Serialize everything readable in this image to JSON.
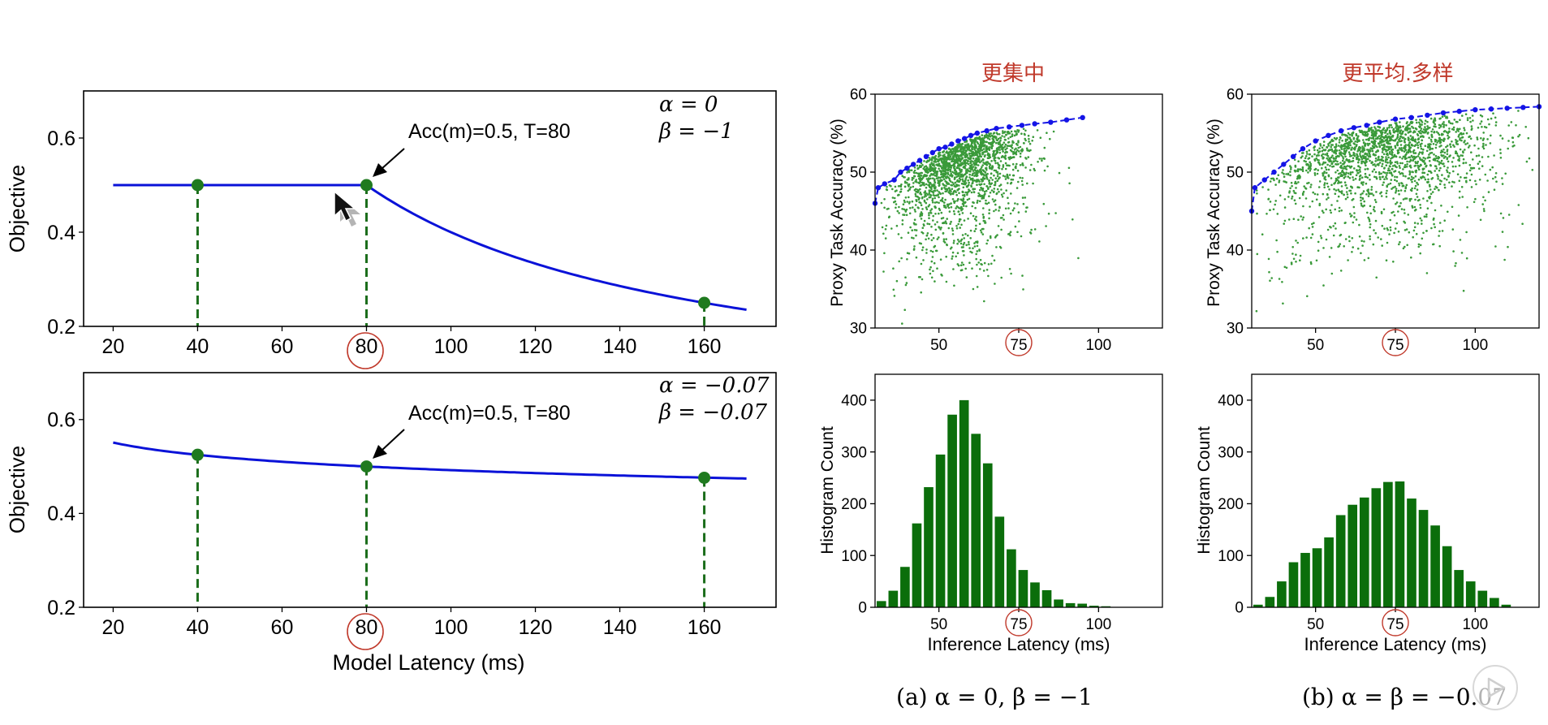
{
  "colors": {
    "curve": "#0a12d8",
    "dash": "#1b6d1b",
    "point": "#1f7a1f",
    "scatter": "#3a9a3a",
    "bar": "#0b6e0b",
    "frontier": "#1414e6",
    "annotation_red": "#c0392b"
  },
  "chart_data": [
    {
      "id": "objective-top",
      "type": "line",
      "ylabel": "Objective",
      "xlim": [
        13,
        177
      ],
      "ylim": [
        0.2,
        0.7
      ],
      "xticks": [
        "20",
        "40",
        "60",
        "80",
        "100",
        "120",
        "140",
        "160"
      ],
      "yticks": [
        "0.2",
        "0.4",
        "0.6"
      ],
      "annotation": "Acc(m)=0.5, T=80",
      "alpha_label": "α = 0",
      "beta_label": "β = −1",
      "alpha": 0,
      "beta": -1,
      "T": 80,
      "acc": 0.5,
      "curve_x_range": [
        20,
        170
      ],
      "points": [
        {
          "x": 40,
          "y": 0.5
        },
        {
          "x": 80,
          "y": 0.5
        },
        {
          "x": 160,
          "y": 0.25
        }
      ]
    },
    {
      "id": "objective-bottom",
      "type": "line",
      "ylabel": "Objective",
      "xlabel": "Model Latency (ms)",
      "xlim": [
        13,
        177
      ],
      "ylim": [
        0.2,
        0.7
      ],
      "xticks": [
        "20",
        "40",
        "60",
        "80",
        "100",
        "120",
        "140",
        "160"
      ],
      "yticks": [
        "0.2",
        "0.4",
        "0.6"
      ],
      "annotation": "Acc(m)=0.5, T=80",
      "alpha_label": "α = −0.07",
      "beta_label": "β = −0.07",
      "alpha": -0.07,
      "beta": -0.07,
      "T": 80,
      "acc": 0.5,
      "curve_x_range": [
        20,
        170
      ],
      "points": [
        {
          "x": 40,
          "y": 0.525
        },
        {
          "x": 80,
          "y": 0.5
        },
        {
          "x": 160,
          "y": 0.476
        }
      ]
    },
    {
      "id": "scatter-a",
      "type": "scatter",
      "ylabel": "Proxy Task Accuracy (%)",
      "title_note": "更集中",
      "xlim": [
        30,
        120
      ],
      "ylim": [
        30,
        60
      ],
      "xticks": [
        "50",
        "75",
        "100"
      ],
      "yticks": [
        "30",
        "40",
        "50",
        "60"
      ],
      "point_count": 2000,
      "cloud_center": 57,
      "cloud_spread": 12,
      "frontier": [
        [
          30,
          46
        ],
        [
          31,
          48
        ],
        [
          33,
          48.5
        ],
        [
          36,
          49
        ],
        [
          38,
          50
        ],
        [
          40,
          50.5
        ],
        [
          42,
          51
        ],
        [
          44,
          51.5
        ],
        [
          46,
          52
        ],
        [
          48,
          52.5
        ],
        [
          50,
          53
        ],
        [
          52,
          53.2
        ],
        [
          54,
          53.6
        ],
        [
          56,
          54
        ],
        [
          58,
          54.3
        ],
        [
          60,
          54.7
        ],
        [
          62,
          55
        ],
        [
          65,
          55.3
        ],
        [
          68,
          55.6
        ],
        [
          72,
          55.8
        ],
        [
          76,
          56
        ],
        [
          80,
          56.2
        ],
        [
          85,
          56.4
        ],
        [
          90,
          56.7
        ],
        [
          95,
          57
        ]
      ]
    },
    {
      "id": "scatter-b",
      "type": "scatter",
      "ylabel": "Proxy Task Accuracy (%)",
      "title_note": "更平均.多样",
      "xlim": [
        30,
        120
      ],
      "ylim": [
        30,
        60
      ],
      "xticks": [
        "50",
        "75",
        "100"
      ],
      "yticks": [
        "30",
        "40",
        "50",
        "60"
      ],
      "point_count": 2000,
      "cloud_center": 72,
      "cloud_spread": 19,
      "frontier": [
        [
          30,
          45
        ],
        [
          31,
          48
        ],
        [
          34,
          49
        ],
        [
          37,
          50
        ],
        [
          40,
          51
        ],
        [
          43,
          52
        ],
        [
          46,
          53
        ],
        [
          50,
          54
        ],
        [
          54,
          54.7
        ],
        [
          58,
          55.3
        ],
        [
          62,
          55.7
        ],
        [
          66,
          56
        ],
        [
          70,
          56.4
        ],
        [
          75,
          56.8
        ],
        [
          80,
          57
        ],
        [
          85,
          57.3
        ],
        [
          90,
          57.6
        ],
        [
          95,
          57.8
        ],
        [
          100,
          58
        ],
        [
          105,
          58.1
        ],
        [
          110,
          58.2
        ],
        [
          115,
          58.3
        ],
        [
          120,
          58.4
        ]
      ]
    },
    {
      "id": "hist-a",
      "type": "bar",
      "ylabel": "Histogram Count",
      "xlabel": "Inference Latency (ms)",
      "caption": "(a) α = 0, β = −1",
      "xlim": [
        30,
        120
      ],
      "ylim": [
        0,
        450
      ],
      "xticks": [
        "50",
        "75",
        "100"
      ],
      "yticks": [
        "0",
        "100",
        "200",
        "300",
        "400"
      ],
      "bin_start": 30.5,
      "bin_width": 3.7,
      "values": [
        12,
        32,
        78,
        162,
        232,
        295,
        372,
        400,
        335,
        278,
        175,
        112,
        72,
        48,
        33,
        15,
        8,
        7,
        3,
        2
      ]
    },
    {
      "id": "hist-b",
      "type": "bar",
      "ylabel": "Histogram Count",
      "xlabel": "Inference Latency (ms)",
      "caption": "(b) α = β = −0.07",
      "xlim": [
        30,
        120
      ],
      "ylim": [
        0,
        450
      ],
      "xticks": [
        "50",
        "75",
        "100"
      ],
      "yticks": [
        "0",
        "100",
        "200",
        "300",
        "400"
      ],
      "bin_start": 30.5,
      "bin_width": 3.7,
      "values": [
        5,
        20,
        50,
        87,
        105,
        114,
        135,
        178,
        198,
        212,
        230,
        242,
        243,
        210,
        188,
        158,
        118,
        72,
        50,
        32,
        18,
        5
      ]
    }
  ]
}
